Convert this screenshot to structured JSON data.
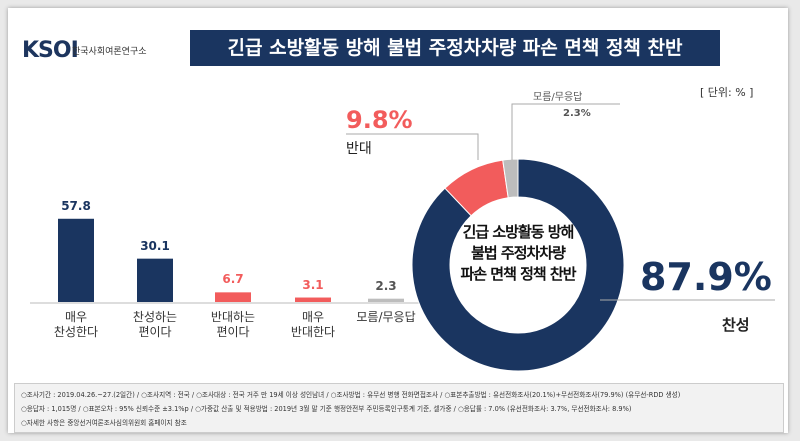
{
  "logo": {
    "name": "KSOI",
    "subtitle": "한국사회여론연구소"
  },
  "title": "긴급 소방활동 방해 불법 주정차차량 파손 면책 정책 찬반",
  "unit": "[ 단위: % ]",
  "chart_data": [
    {
      "type": "bar",
      "categories": [
        "매우\n찬성한다",
        "찬성하는\n편이다",
        "반대하는\n편이다",
        "매우\n반대한다",
        "모름/무응답"
      ],
      "values": [
        57.8,
        30.1,
        6.7,
        3.1,
        2.3
      ],
      "colors": [
        "#1a3560",
        "#1a3560",
        "#f25c5c",
        "#f25c5c",
        "#bdbdbd"
      ],
      "label_colors": [
        "#1a3560",
        "#1a3560",
        "#f25c5c",
        "#f25c5c",
        "#555555"
      ]
    },
    {
      "type": "pie",
      "center_text": "긴급 소방활동 방해\n불법 주정차차량\n파손 면책 정책 찬반",
      "categories": [
        "찬성",
        "반대",
        "모름/무응답"
      ],
      "values": [
        87.9,
        9.8,
        2.3
      ],
      "value_labels": [
        "87.9%",
        "9.8%",
        "2.3%"
      ],
      "colors": [
        "#1a3560",
        "#f25c5c",
        "#bdbdbd"
      ]
    }
  ],
  "footer": [
    "○조사기간 : 2019.04.26.~27.(2일간) / ○조사지역 : 전국 / ○조사대상 : 전국 거주 만 19세 이상 성인남녀 / ○조사방법 : 유무선 병행 전화면접조사 / ○표본추출방법 : 유선전화조사(20.1%)+무선전화조사(79.9%) (유무선-RDD 생성)",
    "○응답자 : 1,015명 / ○표본오차 : 95% 신뢰수준 ±3.1%p / ○가중값 산출 및 적용방법 : 2019년 3월 말 기준 행정안전부 주민등록인구통계 기준, 셀가중 / ○응답률 : 7.0% (유선전화조사: 3.7%, 무선전화조사: 8.9%)",
    "○자세한 사항은 중앙선거여론조사심의위원회 홈페이지 참조"
  ]
}
